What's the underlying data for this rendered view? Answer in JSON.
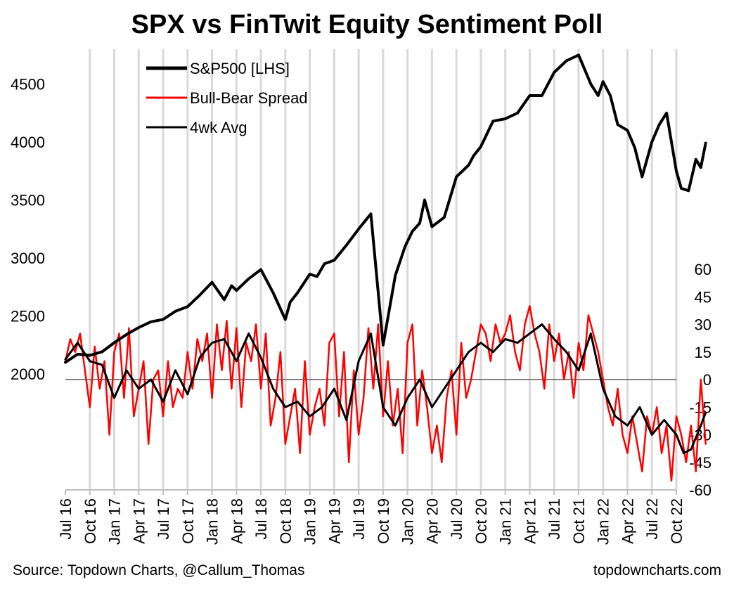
{
  "footer": {
    "source": "Source: Topdown Charts, @Callum_Thomas",
    "brand": "topdowncharts.com"
  },
  "chart_data": {
    "type": "line",
    "title": "SPX vs FinTwit Equity Sentiment Poll",
    "legend": [
      "S&P500 [LHS]",
      "Bull-Bear Spread",
      "4wk Avg"
    ],
    "legend_position": "top-left",
    "x_tick_labels": [
      "Jul 16",
      "Oct 16",
      "Jan 17",
      "Apr 17",
      "Jul 17",
      "Oct 17",
      "Jan 18",
      "Apr 18",
      "Jul 18",
      "Oct 18",
      "Jan 19",
      "Apr 19",
      "Jul 19",
      "Oct 19",
      "Jan 20",
      "Apr 20",
      "Jul 20",
      "Oct 20",
      "Jan 21",
      "Apr 21",
      "Jul 21",
      "Oct 21",
      "Jan 22",
      "Apr 22",
      "Jul 22",
      "Oct 22"
    ],
    "y_left": {
      "label": "",
      "ticks": [
        2000,
        2500,
        3000,
        3500,
        4000,
        4500
      ],
      "range": [
        1000,
        4800
      ]
    },
    "y_right": {
      "label": "",
      "ticks": [
        60,
        45,
        30,
        15,
        0,
        -15,
        -30,
        -45,
        -60
      ],
      "range": [
        -60,
        60
      ]
    },
    "colors": {
      "spx": "#000000",
      "spread": "#ff0000",
      "avg": "#000000",
      "zero_line": "#808080",
      "grid": "#d9d9d9"
    },
    "series": [
      {
        "name": "S&P500 [LHS]",
        "axis": "left",
        "x": [
          0,
          0.5,
          1,
          1.5,
          2,
          2.5,
          3,
          3.5,
          4,
          4.5,
          5,
          5.5,
          6,
          6.5,
          6.8,
          7,
          7.3,
          7.5,
          8,
          8.5,
          9,
          9.2,
          9.5,
          10,
          10.3,
          10.6,
          11,
          11.5,
          12,
          12.5,
          13,
          13.5,
          13.9,
          14.2,
          14.5,
          14.7,
          15,
          15.5,
          16,
          16.5,
          16.7,
          17,
          17.5,
          18,
          18.5,
          19,
          19.5,
          20,
          20.5,
          21,
          21.5,
          21.8,
          22,
          22.3,
          22.6,
          23,
          23.3,
          23.6,
          24,
          24.3,
          24.6,
          25,
          25.2,
          25.5,
          25.8,
          26,
          26.2
        ],
        "values": [
          2100,
          2170,
          2160,
          2190,
          2270,
          2340,
          2400,
          2450,
          2470,
          2540,
          2580,
          2680,
          2790,
          2640,
          2760,
          2720,
          2780,
          2820,
          2900,
          2700,
          2470,
          2620,
          2700,
          2860,
          2840,
          2950,
          2980,
          3110,
          3250,
          3380,
          2250,
          2850,
          3100,
          3230,
          3300,
          3500,
          3270,
          3350,
          3700,
          3800,
          3880,
          3960,
          4180,
          4200,
          4250,
          4400,
          4400,
          4600,
          4700,
          4750,
          4500,
          4400,
          4520,
          4400,
          4150,
          4100,
          3950,
          3700,
          4000,
          4150,
          4250,
          3750,
          3600,
          3580,
          3850,
          3780,
          3990
        ]
      },
      {
        "name": "4wk Avg",
        "axis": "right",
        "x": [
          0,
          0.5,
          1,
          1.5,
          2,
          2.5,
          3,
          3.5,
          4,
          4.5,
          5,
          5.5,
          6,
          6.5,
          7,
          7.5,
          8,
          8.5,
          9,
          9.5,
          10,
          10.5,
          11,
          11.5,
          12,
          12.5,
          13,
          13.5,
          14,
          14.5,
          15,
          15.5,
          16,
          16.5,
          17,
          17.5,
          18,
          18.5,
          19,
          19.5,
          20,
          20.5,
          21,
          21.5,
          22,
          22.5,
          23,
          23.5,
          24,
          24.5,
          25,
          25.3,
          25.6,
          26,
          26.2
        ],
        "values": [
          11,
          20,
          10,
          8,
          -10,
          5,
          -5,
          0,
          -12,
          5,
          -8,
          12,
          20,
          22,
          10,
          25,
          12,
          -5,
          -15,
          -12,
          -20,
          -15,
          -5,
          -22,
          10,
          25,
          -15,
          -25,
          -10,
          0,
          -15,
          -5,
          5,
          15,
          20,
          15,
          22,
          20,
          25,
          30,
          22,
          15,
          5,
          25,
          -5,
          -20,
          -25,
          -15,
          -30,
          -22,
          -30,
          -40,
          -38,
          -25,
          -18
        ]
      },
      {
        "name": "Bull-Bear Spread",
        "axis": "right",
        "x": [
          0,
          0.2,
          0.4,
          0.6,
          0.8,
          1,
          1.2,
          1.4,
          1.6,
          1.8,
          2,
          2.2,
          2.4,
          2.6,
          2.8,
          3,
          3.2,
          3.4,
          3.6,
          3.8,
          4,
          4.2,
          4.4,
          4.6,
          4.8,
          5,
          5.2,
          5.4,
          5.6,
          5.8,
          6,
          6.2,
          6.4,
          6.6,
          6.8,
          7,
          7.2,
          7.4,
          7.6,
          7.8,
          8,
          8.2,
          8.4,
          8.6,
          8.8,
          9,
          9.2,
          9.4,
          9.6,
          9.8,
          10,
          10.2,
          10.4,
          10.6,
          10.8,
          11,
          11.2,
          11.4,
          11.6,
          11.8,
          12,
          12.2,
          12.4,
          12.6,
          12.8,
          13,
          13.2,
          13.4,
          13.6,
          13.8,
          14,
          14.2,
          14.4,
          14.6,
          14.8,
          15,
          15.2,
          15.4,
          15.6,
          15.8,
          16,
          16.2,
          16.4,
          16.6,
          16.8,
          17,
          17.2,
          17.4,
          17.6,
          17.8,
          18,
          18.2,
          18.4,
          18.6,
          18.8,
          19,
          19.2,
          19.4,
          19.6,
          19.8,
          20,
          20.2,
          20.4,
          20.6,
          20.8,
          21,
          21.2,
          21.4,
          21.6,
          21.8,
          22,
          22.2,
          22.4,
          22.6,
          22.8,
          23,
          23.2,
          23.4,
          23.6,
          23.8,
          24,
          24.2,
          24.4,
          24.6,
          24.8,
          25,
          25.2,
          25.4,
          25.6,
          25.8,
          26,
          26.2
        ],
        "values": [
          10,
          22,
          15,
          25,
          5,
          -15,
          18,
          -5,
          10,
          -30,
          15,
          25,
          -10,
          28,
          -20,
          -5,
          10,
          -35,
          0,
          5,
          -20,
          10,
          -15,
          -5,
          -10,
          15,
          -5,
          22,
          10,
          25,
          -10,
          30,
          5,
          32,
          -5,
          28,
          -15,
          20,
          10,
          30,
          -5,
          25,
          -25,
          -10,
          15,
          -35,
          -20,
          -5,
          -40,
          10,
          -30,
          -15,
          -5,
          -25,
          20,
          25,
          -20,
          15,
          -45,
          5,
          -30,
          -10,
          28,
          -5,
          30,
          -20,
          10,
          -25,
          -5,
          -40,
          20,
          30,
          -25,
          5,
          -15,
          -40,
          -25,
          -45,
          -10,
          5,
          -30,
          20,
          -10,
          0,
          15,
          30,
          25,
          10,
          30,
          20,
          25,
          35,
          15,
          5,
          30,
          40,
          25,
          15,
          -5,
          30,
          10,
          25,
          0,
          15,
          -10,
          20,
          5,
          35,
          25,
          15,
          0,
          -15,
          -25,
          -5,
          -30,
          -40,
          -20,
          -35,
          -50,
          -20,
          -30,
          -15,
          -40,
          -25,
          -55,
          -20,
          -30,
          -45,
          -25,
          -50,
          0,
          -35
        ]
      }
    ]
  }
}
